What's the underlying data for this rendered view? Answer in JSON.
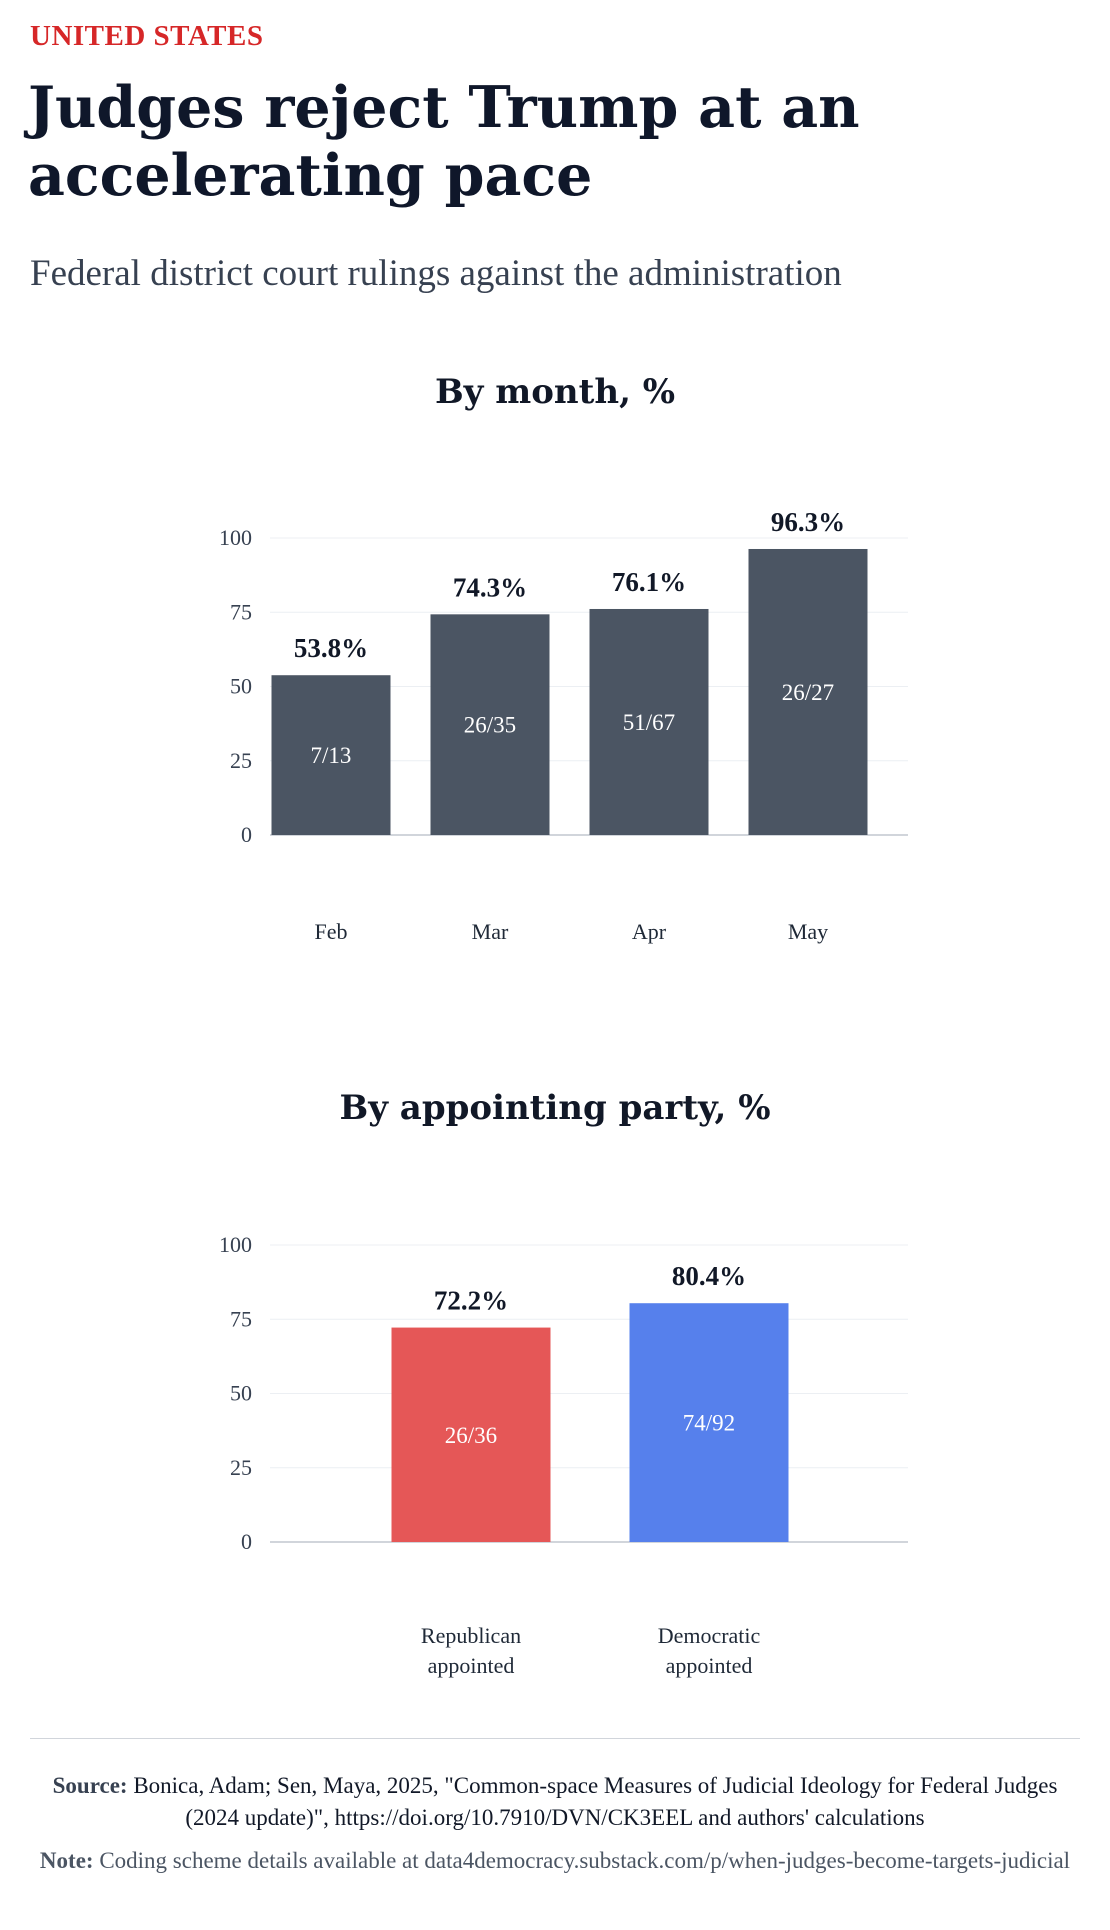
{
  "header": {
    "kicker": "UNITED STATES",
    "headline": "Judges reject Trump at an accelerating pace",
    "subtitle": "Federal district court rulings against the administration"
  },
  "colors": {
    "kicker": "#d62728",
    "month_bar": "#4b5563",
    "republican": "#e55757",
    "democratic": "#5680ec"
  },
  "chart_data": [
    {
      "type": "bar",
      "title": "By month, %",
      "categories": [
        "Feb",
        "Mar",
        "Apr",
        "May"
      ],
      "values": [
        53.8,
        74.3,
        76.1,
        96.3
      ],
      "value_labels": [
        "53.8%",
        "74.3%",
        "76.1%",
        "96.3%"
      ],
      "fractions": [
        "7/13",
        "26/35",
        "51/67",
        "26/27"
      ],
      "yticks": [
        "0",
        "25",
        "50",
        "75",
        "100"
      ],
      "ylim": [
        0,
        100
      ],
      "grid": true
    },
    {
      "type": "bar",
      "title": "By appointing party, %",
      "categories": [
        [
          "Republican",
          "appointed"
        ],
        [
          "Democratic",
          "appointed"
        ]
      ],
      "values": [
        72.2,
        80.4
      ],
      "value_labels": [
        "72.2%",
        "80.4%"
      ],
      "fractions": [
        "26/36",
        "74/92"
      ],
      "yticks": [
        "0",
        "25",
        "50",
        "75",
        "100"
      ],
      "ylim": [
        0,
        100
      ],
      "grid": true
    }
  ],
  "footer": {
    "source_label": "Source:",
    "source_text": "Bonica, Adam; Sen, Maya, 2025, \"Common-space Measures of Judicial Ideology for Federal Judges (2024 update)\", https://doi.org/10.7910/DVN/CK3EEL and authors' calculations",
    "note_label": "Note:",
    "note_text": "Coding scheme details available at data4democracy.substack.com/p/when-judges-become-targets-judicial"
  }
}
